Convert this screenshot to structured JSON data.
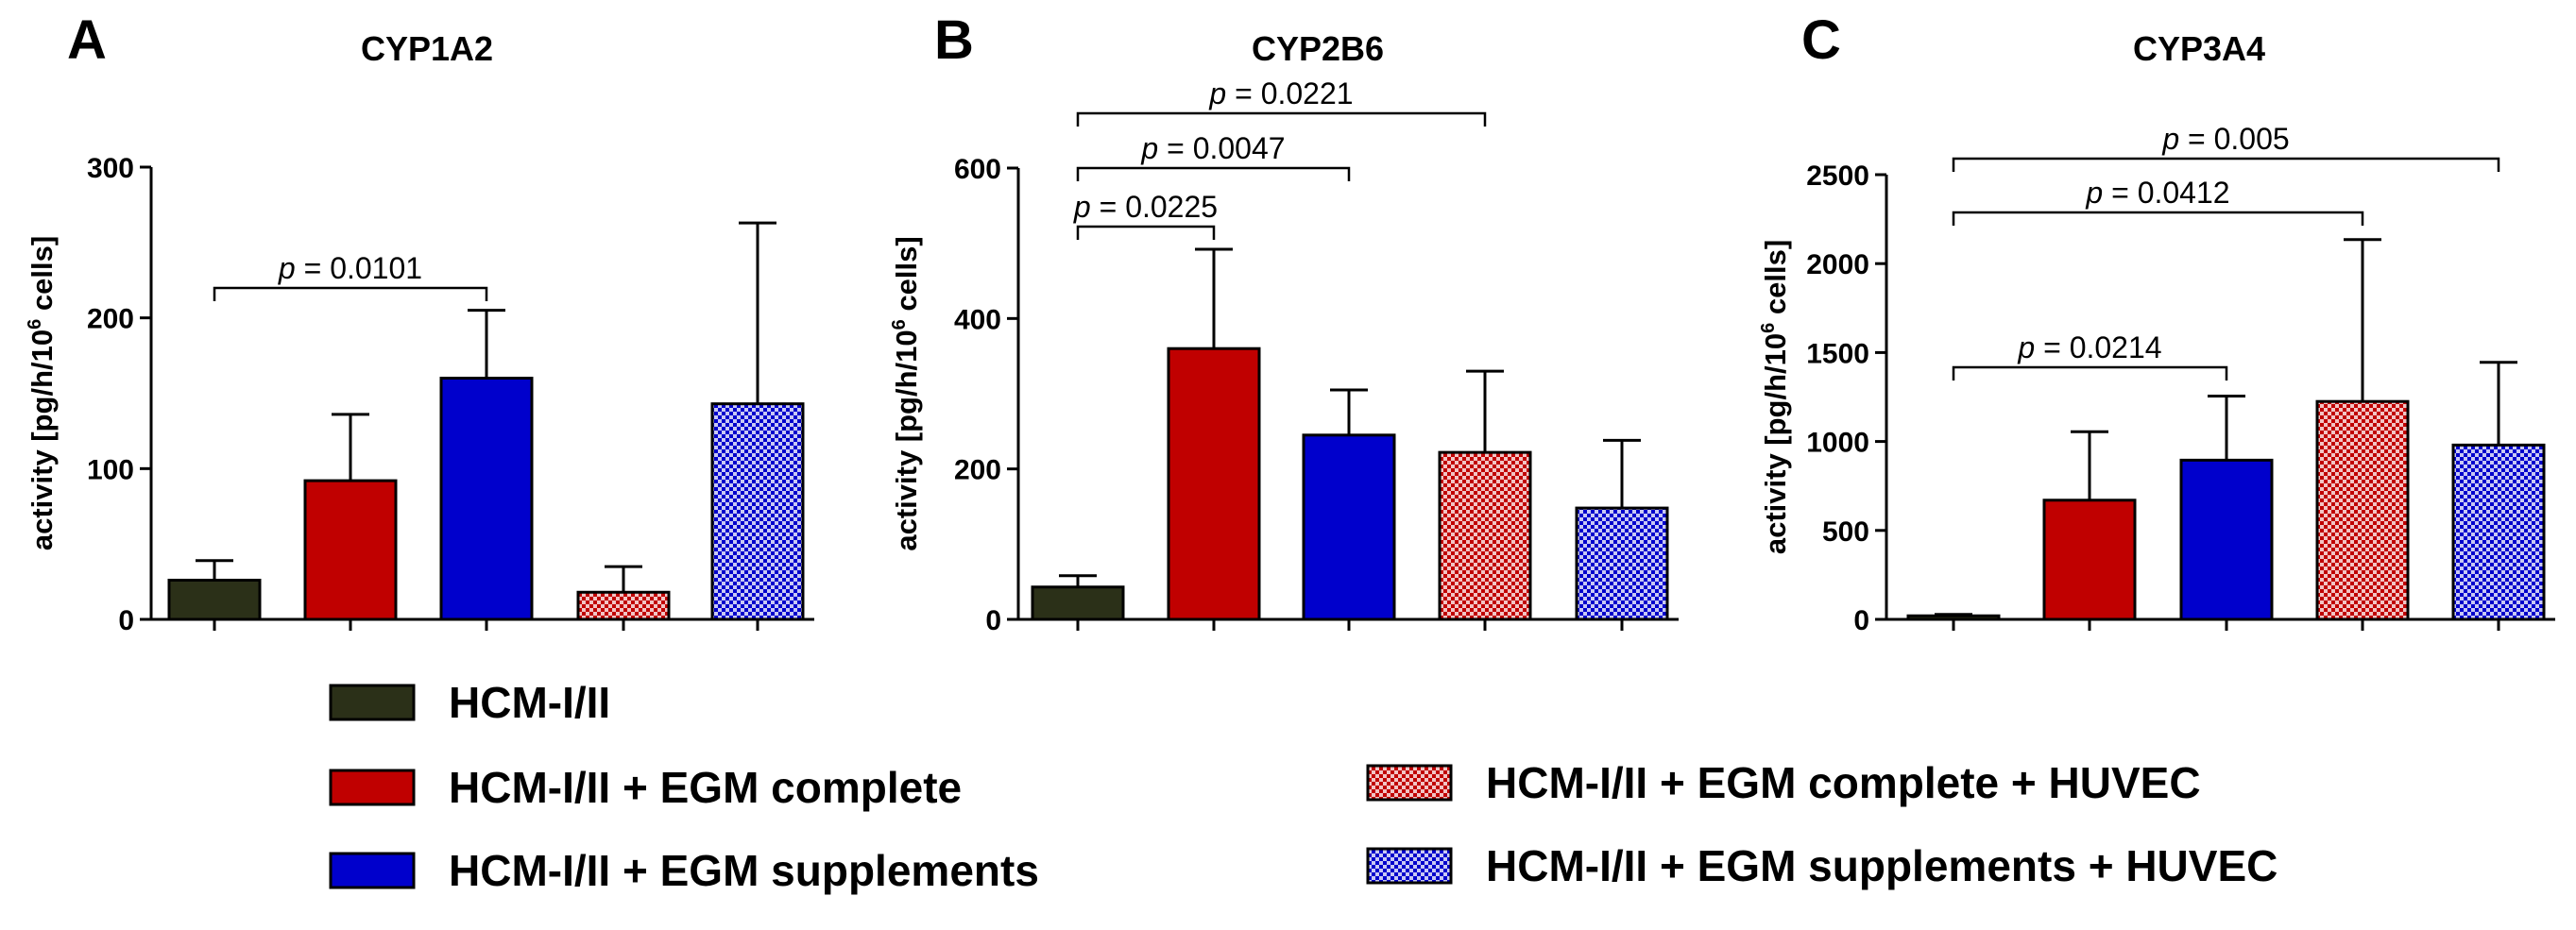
{
  "colors": {
    "hcm": "#2b3018",
    "egm_complete": "#c00000",
    "egm_supplements": "#0000cc",
    "egm_complete_huvec": "#c00000",
    "egm_supplements_huvec": "#0000cc"
  },
  "legend": [
    {
      "key": "hcm",
      "label": "HCM-I/II",
      "pattern": "solid"
    },
    {
      "key": "egm_complete",
      "label": "HCM-I/II + EGM complete",
      "pattern": "solid"
    },
    {
      "key": "egm_supplements",
      "label": "HCM-I/II + EGM supplements",
      "pattern": "solid"
    },
    {
      "key": "egm_complete_huvec",
      "label": "HCM-I/II + EGM complete + HUVEC",
      "pattern": "checker"
    },
    {
      "key": "egm_supplements_huvec",
      "label": "HCM-I/II + EGM supplements + HUVEC",
      "pattern": "checker"
    }
  ],
  "chart_data": [
    {
      "panel": "A",
      "type": "bar",
      "title": "CYP1A2",
      "ylabel": "activity [pg/h/10",
      "ylabel_sup": "6",
      "ylabel_end": " cells]",
      "ylim": [
        0,
        300
      ],
      "yticks": [
        0,
        100,
        200,
        300
      ],
      "categories": [
        "HCM-I/II",
        "HCM-I/II + EGM complete",
        "HCM-I/II + EGM supplements",
        "HCM-I/II + EGM complete + HUVEC",
        "HCM-I/II + EGM supplements + HUVEC"
      ],
      "values": [
        26,
        92,
        160,
        18,
        143
      ],
      "errors": [
        13,
        44,
        45,
        17,
        120
      ],
      "significance": [
        {
          "from": 0,
          "to": 2,
          "label_prefix": "p",
          "label_value": " = 0.0101",
          "level": 0
        }
      ]
    },
    {
      "panel": "B",
      "type": "bar",
      "title": "CYP2B6",
      "ylabel": "activity [pg/h/10",
      "ylabel_sup": "6",
      "ylabel_end": " cells]",
      "ylim": [
        0,
        600
      ],
      "yticks": [
        0,
        200,
        400,
        600
      ],
      "categories": [
        "HCM-I/II",
        "HCM-I/II + EGM complete",
        "HCM-I/II + EGM supplements",
        "HCM-I/II + EGM complete + HUVEC",
        "HCM-I/II + EGM supplements + HUVEC"
      ],
      "values": [
        43,
        360,
        245,
        222,
        148
      ],
      "errors": [
        15,
        132,
        60,
        108,
        90
      ],
      "significance": [
        {
          "from": 0,
          "to": 1,
          "label_prefix": "p",
          "label_value": " = 0.0225",
          "level": 0
        },
        {
          "from": 0,
          "to": 2,
          "label_prefix": "p",
          "label_value": " = 0.0047",
          "level": 1
        },
        {
          "from": 0,
          "to": 3,
          "label_prefix": "p",
          "label_value": " = 0.0221",
          "level": 2
        }
      ]
    },
    {
      "panel": "C",
      "type": "bar",
      "title": "CYP3A4",
      "ylabel": "activity [pg/h/10",
      "ylabel_sup": "6",
      "ylabel_end": " cells]",
      "ylim": [
        0,
        2500
      ],
      "yticks": [
        0,
        500,
        1000,
        1500,
        2000,
        2500
      ],
      "categories": [
        "HCM-I/II",
        "HCM-I/II + EGM complete",
        "HCM-I/II + EGM supplements",
        "HCM-I/II + EGM complete + HUVEC",
        "HCM-I/II + EGM supplements + HUVEC"
      ],
      "values": [
        20,
        670,
        895,
        1225,
        980
      ],
      "errors": [
        8,
        385,
        360,
        910,
        465
      ],
      "significance": [
        {
          "from": 0,
          "to": 2,
          "label_prefix": "p",
          "label_value": " = 0.0214",
          "level": 0
        },
        {
          "from": 0,
          "to": 3,
          "label_prefix": "p",
          "label_value": " = 0.0412",
          "level": 1
        },
        {
          "from": 0,
          "to": 4,
          "label_prefix": "p",
          "label_value": " = 0.005",
          "level": 2
        }
      ]
    }
  ]
}
